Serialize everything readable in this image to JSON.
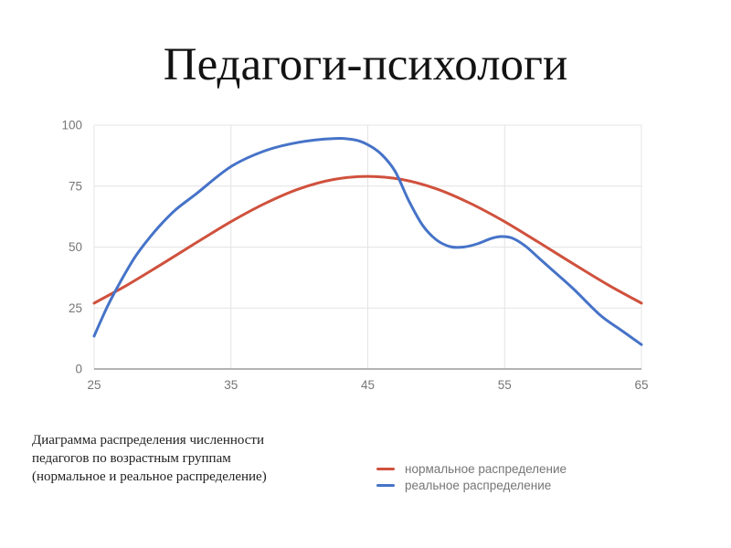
{
  "title": "Педагоги-психологи",
  "caption": {
    "lines": [
      "Диаграмма распределения численности",
      "педагогов по возрастным группам",
      "(нормальное и реальное распределение)"
    ]
  },
  "chart_data": {
    "type": "line",
    "title": "",
    "xlabel": "",
    "ylabel": "",
    "xlim": [
      25,
      65
    ],
    "ylim": [
      0,
      100
    ],
    "x_ticks": [
      25,
      35,
      45,
      55,
      65
    ],
    "y_ticks": [
      0,
      25,
      50,
      75,
      100
    ],
    "grid": true,
    "legend_position": "bottom-right",
    "colors": {
      "grid": "#e4e4e4",
      "axis_line": "#9a9a9a",
      "tick_label": "#757575"
    },
    "series": [
      {
        "name": "нормальное распределение",
        "color": "#d0513d",
        "x": [
          25,
          27.5,
          30,
          32.5,
          35,
          37.5,
          40,
          42.5,
          45,
          47.5,
          50,
          52.5,
          55,
          57.5,
          60,
          62.5,
          65
        ],
        "y": [
          27,
          34.7,
          43.2,
          51.9,
          60.4,
          67.9,
          73.9,
          77.7,
          79,
          77.7,
          73.9,
          67.9,
          60.4,
          51.9,
          43.2,
          34.7,
          27
        ]
      },
      {
        "name": "реальное распределение",
        "color": "#4673c8",
        "x": [
          25,
          26,
          27,
          28,
          29,
          30,
          31,
          32.5,
          35,
          37.5,
          40,
          42.5,
          44,
          45,
          46,
          47,
          48,
          49,
          50,
          51,
          52,
          53,
          54,
          54.7,
          55.5,
          56.5,
          57.5,
          58.5,
          60,
          62,
          63.5,
          65
        ],
        "y": [
          13.5,
          26,
          36.5,
          46,
          53.5,
          60,
          65.5,
          72,
          83,
          89.5,
          93,
          94.5,
          94,
          92,
          88,
          81,
          69,
          59,
          53,
          50.2,
          50,
          51.3,
          53.5,
          54.3,
          53.8,
          50.5,
          45.5,
          40.5,
          33,
          22,
          16,
          10
        ]
      }
    ]
  }
}
